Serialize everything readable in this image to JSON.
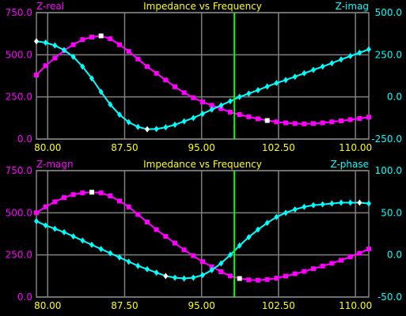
{
  "colors": {
    "background": "#000000",
    "grid": "#808080",
    "left_axis": "#ff00ff",
    "right_axis": "#00ffff",
    "title": "#ffff00",
    "x_axis": "#ffff00",
    "cursor": "#00ff00",
    "marker": "#ffffff"
  },
  "chart_data": [
    {
      "type": "line",
      "title": "Impedance vs Frequency",
      "left_label": "Z-real",
      "right_label": "Z-imag",
      "xlim": [
        78.9,
        111.3
      ],
      "x_ticks": [
        "80.00",
        "87.50",
        "95.00",
        "102.50",
        "110.00"
      ],
      "ylim_left": [
        0,
        750
      ],
      "y_ticks_left": [
        "750.0",
        "500.0",
        "250.0",
        "0.0"
      ],
      "ylim_right": [
        -250,
        500
      ],
      "y_ticks_right": [
        "500.0",
        "250.0",
        "0.0",
        "-250.0"
      ],
      "cursor_x": 98.2,
      "grid": true,
      "series": [
        {
          "name": "Z-real",
          "axis": "left",
          "color": "#ff00ff",
          "marker": "square",
          "x": [
            78.9,
            79.8,
            80.7,
            81.6,
            82.5,
            83.4,
            84.3,
            85.2,
            86.1,
            87.0,
            87.9,
            88.8,
            89.7,
            90.6,
            91.5,
            92.4,
            93.3,
            94.2,
            95.1,
            96.0,
            96.9,
            97.8,
            98.7,
            99.6,
            100.5,
            101.4,
            102.3,
            103.2,
            104.1,
            105.0,
            105.9,
            106.8,
            107.7,
            108.6,
            109.5,
            110.4,
            111.3
          ],
          "y": [
            380,
            435,
            480,
            525,
            560,
            590,
            605,
            612,
            595,
            560,
            520,
            475,
            430,
            390,
            350,
            310,
            275,
            245,
            220,
            200,
            180,
            160,
            145,
            132,
            120,
            110,
            102,
            96,
            92,
            90,
            92,
            96,
            102,
            108,
            115,
            122,
            130
          ],
          "highlight_x": [
            85.2,
            101.4
          ]
        },
        {
          "name": "Z-imag",
          "axis": "right",
          "color": "#00ffff",
          "marker": "diamond",
          "x": [
            78.9,
            79.8,
            80.7,
            81.6,
            82.5,
            83.4,
            84.3,
            85.2,
            86.1,
            87.0,
            87.9,
            88.8,
            89.7,
            90.6,
            91.5,
            92.4,
            93.3,
            94.2,
            95.1,
            96.0,
            96.9,
            97.8,
            98.7,
            99.6,
            100.5,
            101.4,
            102.3,
            103.2,
            104.1,
            105.0,
            105.9,
            106.8,
            107.7,
            108.6,
            109.5,
            110.4,
            111.3
          ],
          "y": [
            330,
            322,
            305,
            278,
            238,
            180,
            110,
            30,
            -45,
            -105,
            -150,
            -178,
            -192,
            -190,
            -180,
            -165,
            -145,
            -125,
            -100,
            -75,
            -50,
            -25,
            0,
            20,
            40,
            62,
            82,
            100,
            120,
            140,
            160,
            180,
            200,
            222,
            242,
            262,
            282
          ],
          "highlight_x": [
            78.9,
            89.7
          ]
        }
      ]
    },
    {
      "type": "line",
      "title": "Impedance vs Frequency",
      "left_label": "Z-magn",
      "right_label": "Z-phase",
      "xlim": [
        78.9,
        111.3
      ],
      "x_ticks": [
        "80.00",
        "87.50",
        "95.00",
        "102.50",
        "110.00"
      ],
      "ylim_left": [
        0,
        750
      ],
      "y_ticks_left": [
        "750.0",
        "500.0",
        "250.0",
        "0.0"
      ],
      "ylim_right": [
        -50,
        100
      ],
      "y_ticks_right": [
        "100.0",
        "50.0",
        "0.0",
        "-50.0"
      ],
      "cursor_x": 98.2,
      "grid": true,
      "series": [
        {
          "name": "Z-magn",
          "axis": "left",
          "color": "#ff00ff",
          "marker": "square",
          "x": [
            78.9,
            79.8,
            80.7,
            81.6,
            82.5,
            83.4,
            84.3,
            85.2,
            86.1,
            87.0,
            87.9,
            88.8,
            89.7,
            90.6,
            91.5,
            92.4,
            93.3,
            94.2,
            95.1,
            96.0,
            96.9,
            97.8,
            98.7,
            99.6,
            100.5,
            101.4,
            102.3,
            103.2,
            104.1,
            105.0,
            105.9,
            106.8,
            107.7,
            108.6,
            109.5,
            110.4,
            111.3
          ],
          "y": [
            500,
            535,
            565,
            590,
            608,
            618,
            622,
            618,
            600,
            570,
            535,
            490,
            445,
            400,
            360,
            320,
            280,
            245,
            210,
            180,
            150,
            125,
            110,
            102,
            100,
            104,
            112,
            124,
            138,
            152,
            168,
            184,
            200,
            218,
            238,
            260,
            285
          ],
          "highlight_x": [
            84.3,
            98.7
          ]
        },
        {
          "name": "Z-phase",
          "axis": "right",
          "color": "#00ffff",
          "marker": "diamond",
          "x": [
            78.9,
            79.8,
            80.7,
            81.6,
            82.5,
            83.4,
            84.3,
            85.2,
            86.1,
            87.0,
            87.9,
            88.8,
            89.7,
            90.6,
            91.5,
            92.4,
            93.3,
            94.2,
            95.1,
            96.0,
            96.9,
            97.8,
            98.7,
            99.6,
            100.5,
            101.4,
            102.3,
            103.2,
            104.1,
            105.0,
            105.9,
            106.8,
            107.7,
            108.6,
            109.5,
            110.4,
            111.3
          ],
          "y": [
            40,
            35,
            31,
            27,
            22,
            17,
            12,
            7,
            2,
            -3,
            -8,
            -13,
            -17,
            -21,
            -25,
            -27,
            -28,
            -27,
            -24,
            -18,
            -10,
            0,
            11,
            21,
            30,
            38,
            45,
            50,
            54,
            57,
            59,
            60,
            61,
            62,
            62,
            62,
            61
          ],
          "highlight_x": [
            91.5,
            110.4
          ]
        }
      ]
    }
  ]
}
